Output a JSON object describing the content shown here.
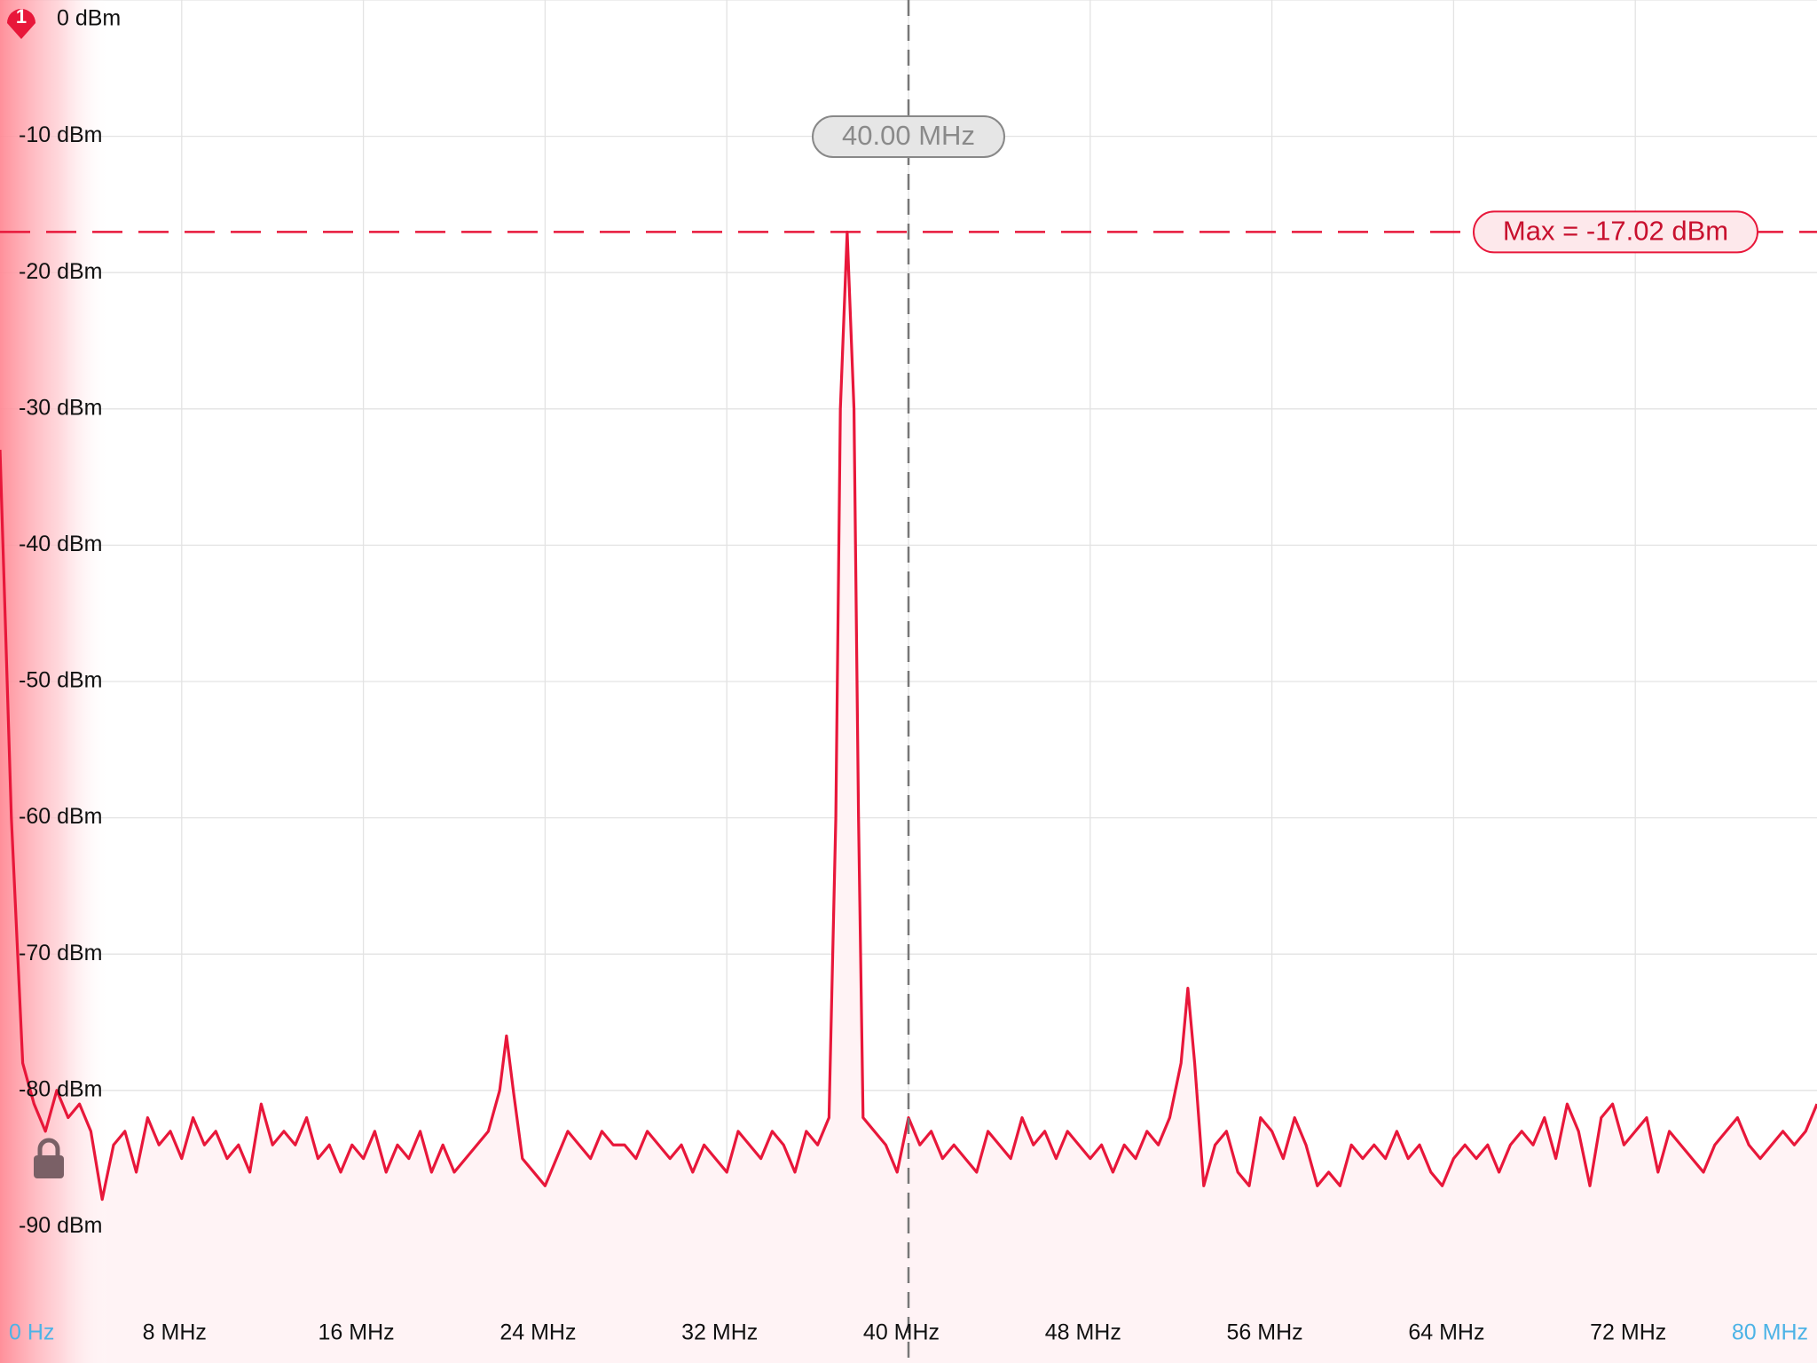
{
  "chart_data": {
    "type": "line",
    "channel_badge": "1",
    "color": "#e8173a",
    "fill_color": "#fff3f5",
    "edge_tick_color": "#4db3e6",
    "grid": true,
    "xlim": [
      0,
      80
    ],
    "ylim": [
      -100,
      0
    ],
    "xticks": [
      {
        "value": 0,
        "label": "0 Hz"
      },
      {
        "value": 8,
        "label": "8 MHz"
      },
      {
        "value": 16,
        "label": "16 MHz"
      },
      {
        "value": 24,
        "label": "24 MHz"
      },
      {
        "value": 32,
        "label": "32 MHz"
      },
      {
        "value": 40,
        "label": "40 MHz"
      },
      {
        "value": 48,
        "label": "48 MHz"
      },
      {
        "value": 56,
        "label": "56 MHz"
      },
      {
        "value": 64,
        "label": "64 MHz"
      },
      {
        "value": 72,
        "label": "72 MHz"
      },
      {
        "value": 80,
        "label": "80 MHz"
      }
    ],
    "yticks": [
      {
        "value": 0,
        "label": "0 dBm"
      },
      {
        "value": -10,
        "label": "-10 dBm"
      },
      {
        "value": -20,
        "label": "-20 dBm"
      },
      {
        "value": -30,
        "label": "-30 dBm"
      },
      {
        "value": -40,
        "label": "-40 dBm"
      },
      {
        "value": -50,
        "label": "-50 dBm"
      },
      {
        "value": -60,
        "label": "-60 dBm"
      },
      {
        "value": -70,
        "label": "-70 dBm"
      },
      {
        "value": -80,
        "label": "-80 dBm"
      },
      {
        "value": -90,
        "label": "-90 dBm"
      }
    ],
    "cursor": {
      "value": 40,
      "label": "40.00 MHz"
    },
    "max_line": {
      "value": -17.02,
      "label": "Max = -17.02 dBm"
    },
    "x": [
      0,
      0.5,
      1,
      1.5,
      2,
      2.5,
      3,
      3.5,
      4,
      4.5,
      5,
      5.5,
      6,
      6.5,
      7,
      7.5,
      8,
      8.5,
      9,
      9.5,
      10,
      10.5,
      11,
      11.5,
      12,
      12.5,
      13,
      13.5,
      14,
      14.5,
      15,
      15.5,
      16,
      16.5,
      17,
      17.5,
      18,
      18.5,
      19,
      19.5,
      20,
      20.5,
      21,
      21.5,
      22,
      22.3,
      22.6,
      23,
      23.5,
      24,
      24.5,
      25,
      25.5,
      26,
      26.5,
      27,
      27.5,
      28,
      28.5,
      29,
      29.5,
      30,
      30.5,
      31,
      31.5,
      32,
      32.5,
      33,
      33.5,
      34,
      34.5,
      35,
      35.5,
      36,
      36.5,
      36.8,
      37,
      37.3,
      37.6,
      37.8,
      38,
      38.5,
      39,
      39.5,
      40,
      40.5,
      41,
      41.5,
      42,
      42.5,
      43,
      43.5,
      44,
      44.5,
      45,
      45.5,
      46,
      46.5,
      47,
      47.5,
      48,
      48.5,
      49,
      49.5,
      50,
      50.5,
      51,
      51.5,
      52,
      52.3,
      52.6,
      53,
      53.5,
      54,
      54.5,
      55,
      55.5,
      56,
      56.5,
      57,
      57.5,
      58,
      58.5,
      59,
      59.5,
      60,
      60.5,
      61,
      61.5,
      62,
      62.5,
      63,
      63.5,
      64,
      64.5,
      65,
      65.5,
      66,
      66.5,
      67,
      67.5,
      68,
      68.5,
      69,
      69.5,
      70,
      70.5,
      71,
      71.5,
      72,
      72.5,
      73,
      73.5,
      74,
      74.5,
      75,
      75.5,
      76,
      76.5,
      77,
      77.5,
      78,
      78.5,
      79,
      79.5,
      80
    ],
    "values": [
      -33,
      -60,
      -78,
      -81,
      -83,
      -80,
      -82,
      -81,
      -83,
      -88,
      -84,
      -83,
      -86,
      -82,
      -84,
      -83,
      -85,
      -82,
      -84,
      -83,
      -85,
      -84,
      -86,
      -81,
      -84,
      -83,
      -84,
      -82,
      -85,
      -84,
      -86,
      -84,
      -85,
      -83,
      -86,
      -84,
      -85,
      -83,
      -86,
      -84,
      -86,
      -85,
      -84,
      -83,
      -80,
      -76,
      -80,
      -85,
      -86,
      -87,
      -85,
      -83,
      -84,
      -85,
      -83,
      -84,
      -84,
      -85,
      -83,
      -84,
      -85,
      -84,
      -86,
      -84,
      -85,
      -86,
      -83,
      -84,
      -85,
      -83,
      -84,
      -86,
      -83,
      -84,
      -82,
      -60,
      -30,
      -17.02,
      -30,
      -60,
      -82,
      -83,
      -84,
      -86,
      -82,
      -84,
      -83,
      -85,
      -84,
      -85,
      -86,
      -83,
      -84,
      -85,
      -82,
      -84,
      -83,
      -85,
      -83,
      -84,
      -85,
      -84,
      -86,
      -84,
      -85,
      -83,
      -84,
      -82,
      -78,
      -72.5,
      -78,
      -87,
      -84,
      -83,
      -86,
      -87,
      -82,
      -83,
      -85,
      -82,
      -84,
      -87,
      -86,
      -87,
      -84,
      -85,
      -84,
      -85,
      -83,
      -85,
      -84,
      -86,
      -87,
      -85,
      -84,
      -85,
      -84,
      -86,
      -84,
      -83,
      -84,
      -82,
      -85,
      -81,
      -83,
      -87,
      -82,
      -81,
      -84,
      -83,
      -82,
      -86,
      -83,
      -84,
      -85,
      -86,
      -84,
      -83,
      -82,
      -84,
      -85,
      -84,
      -83,
      -84,
      -83,
      -81
    ]
  }
}
